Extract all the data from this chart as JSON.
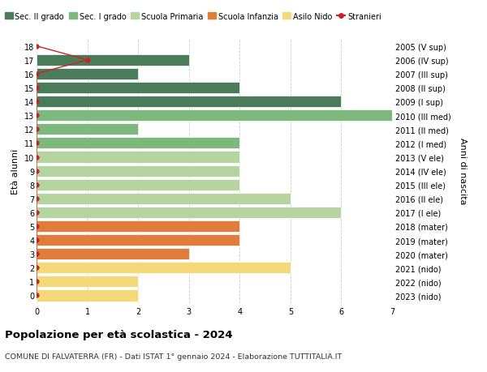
{
  "ages": [
    18,
    17,
    16,
    15,
    14,
    13,
    12,
    11,
    10,
    9,
    8,
    7,
    6,
    5,
    4,
    3,
    2,
    1,
    0
  ],
  "years": [
    "2005 (V sup)",
    "2006 (IV sup)",
    "2007 (III sup)",
    "2008 (II sup)",
    "2009 (I sup)",
    "2010 (III med)",
    "2011 (II med)",
    "2012 (I med)",
    "2013 (V ele)",
    "2014 (IV ele)",
    "2015 (III ele)",
    "2016 (II ele)",
    "2017 (I ele)",
    "2018 (mater)",
    "2019 (mater)",
    "2020 (mater)",
    "2021 (nido)",
    "2022 (nido)",
    "2023 (nido)"
  ],
  "bar_values": [
    0,
    3,
    2,
    4,
    6,
    7,
    2,
    4,
    4,
    4,
    4,
    5,
    6,
    4,
    4,
    3,
    5,
    2,
    2
  ],
  "bar_colors": [
    "#4a7c59",
    "#4a7c59",
    "#4a7c59",
    "#4a7c59",
    "#4a7c59",
    "#7db87d",
    "#7db87d",
    "#7db87d",
    "#b5d4a0",
    "#b5d4a0",
    "#b5d4a0",
    "#b5d4a0",
    "#b5d4a0",
    "#e07d3c",
    "#e07d3c",
    "#e07d3c",
    "#f5d87a",
    "#f5d87a",
    "#f5d87a"
  ],
  "stranieri_ages": [
    18,
    17,
    16,
    15,
    14,
    13,
    12,
    11,
    10,
    9,
    8,
    7,
    6,
    5,
    4,
    3,
    2,
    1,
    0
  ],
  "stranieri_values": [
    0,
    1,
    0,
    0,
    0,
    0,
    0,
    0,
    0,
    0,
    0,
    0,
    0,
    0,
    0,
    0,
    0,
    0,
    0
  ],
  "legend_labels": [
    "Sec. II grado",
    "Sec. I grado",
    "Scuola Primaria",
    "Scuola Infanzia",
    "Asilo Nido",
    "Stranieri"
  ],
  "legend_colors": [
    "#4a7c59",
    "#7db87d",
    "#b5d4a0",
    "#e07d3c",
    "#f5d87a",
    "#cc2222"
  ],
  "title": "Popolazione per età scolastica - 2024",
  "subtitle": "COMUNE DI FALVATERRA (FR) - Dati ISTAT 1° gennaio 2024 - Elaborazione TUTTITALIA.IT",
  "ylabel": "Età alunni",
  "right_ylabel": "Anni di nascita",
  "xlim": [
    0,
    7
  ],
  "bar_height": 0.82,
  "grid_color": "#cccccc",
  "bg_color": "#ffffff",
  "stranieri_line_color": "#cc2222",
  "stranieri_dot_color": "#cc2222"
}
